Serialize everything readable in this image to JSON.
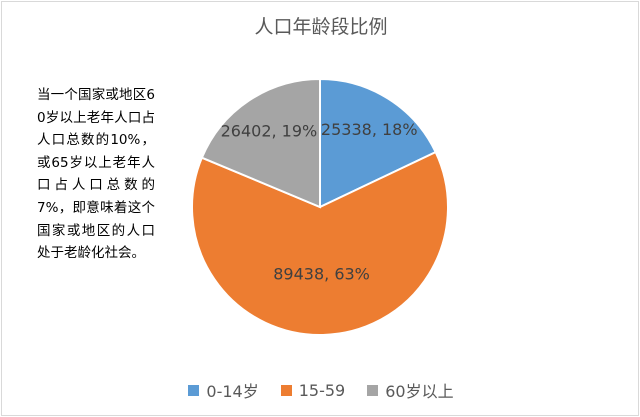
{
  "chart_data": {
    "type": "pie",
    "title": "人口年龄段比例",
    "categories": [
      "0-14岁",
      "15-59",
      "60岁以上"
    ],
    "values": [
      25338,
      89438,
      26402
    ],
    "percents": [
      "18%",
      "63%",
      "19%"
    ],
    "data_labels": [
      "25338, 18%",
      "89438, 63%",
      "26402, 19%"
    ],
    "colors": [
      "#5b9bd5",
      "#ed7d31",
      "#a5a5a5"
    ],
    "legend_position": "bottom"
  },
  "annotation": "当一个国家或地区60岁以上老年人口占人口总数的10%，或65岁以上老年人口占人口总数的7%，即意味着这个国家或地区的人口处于老龄化社会。"
}
